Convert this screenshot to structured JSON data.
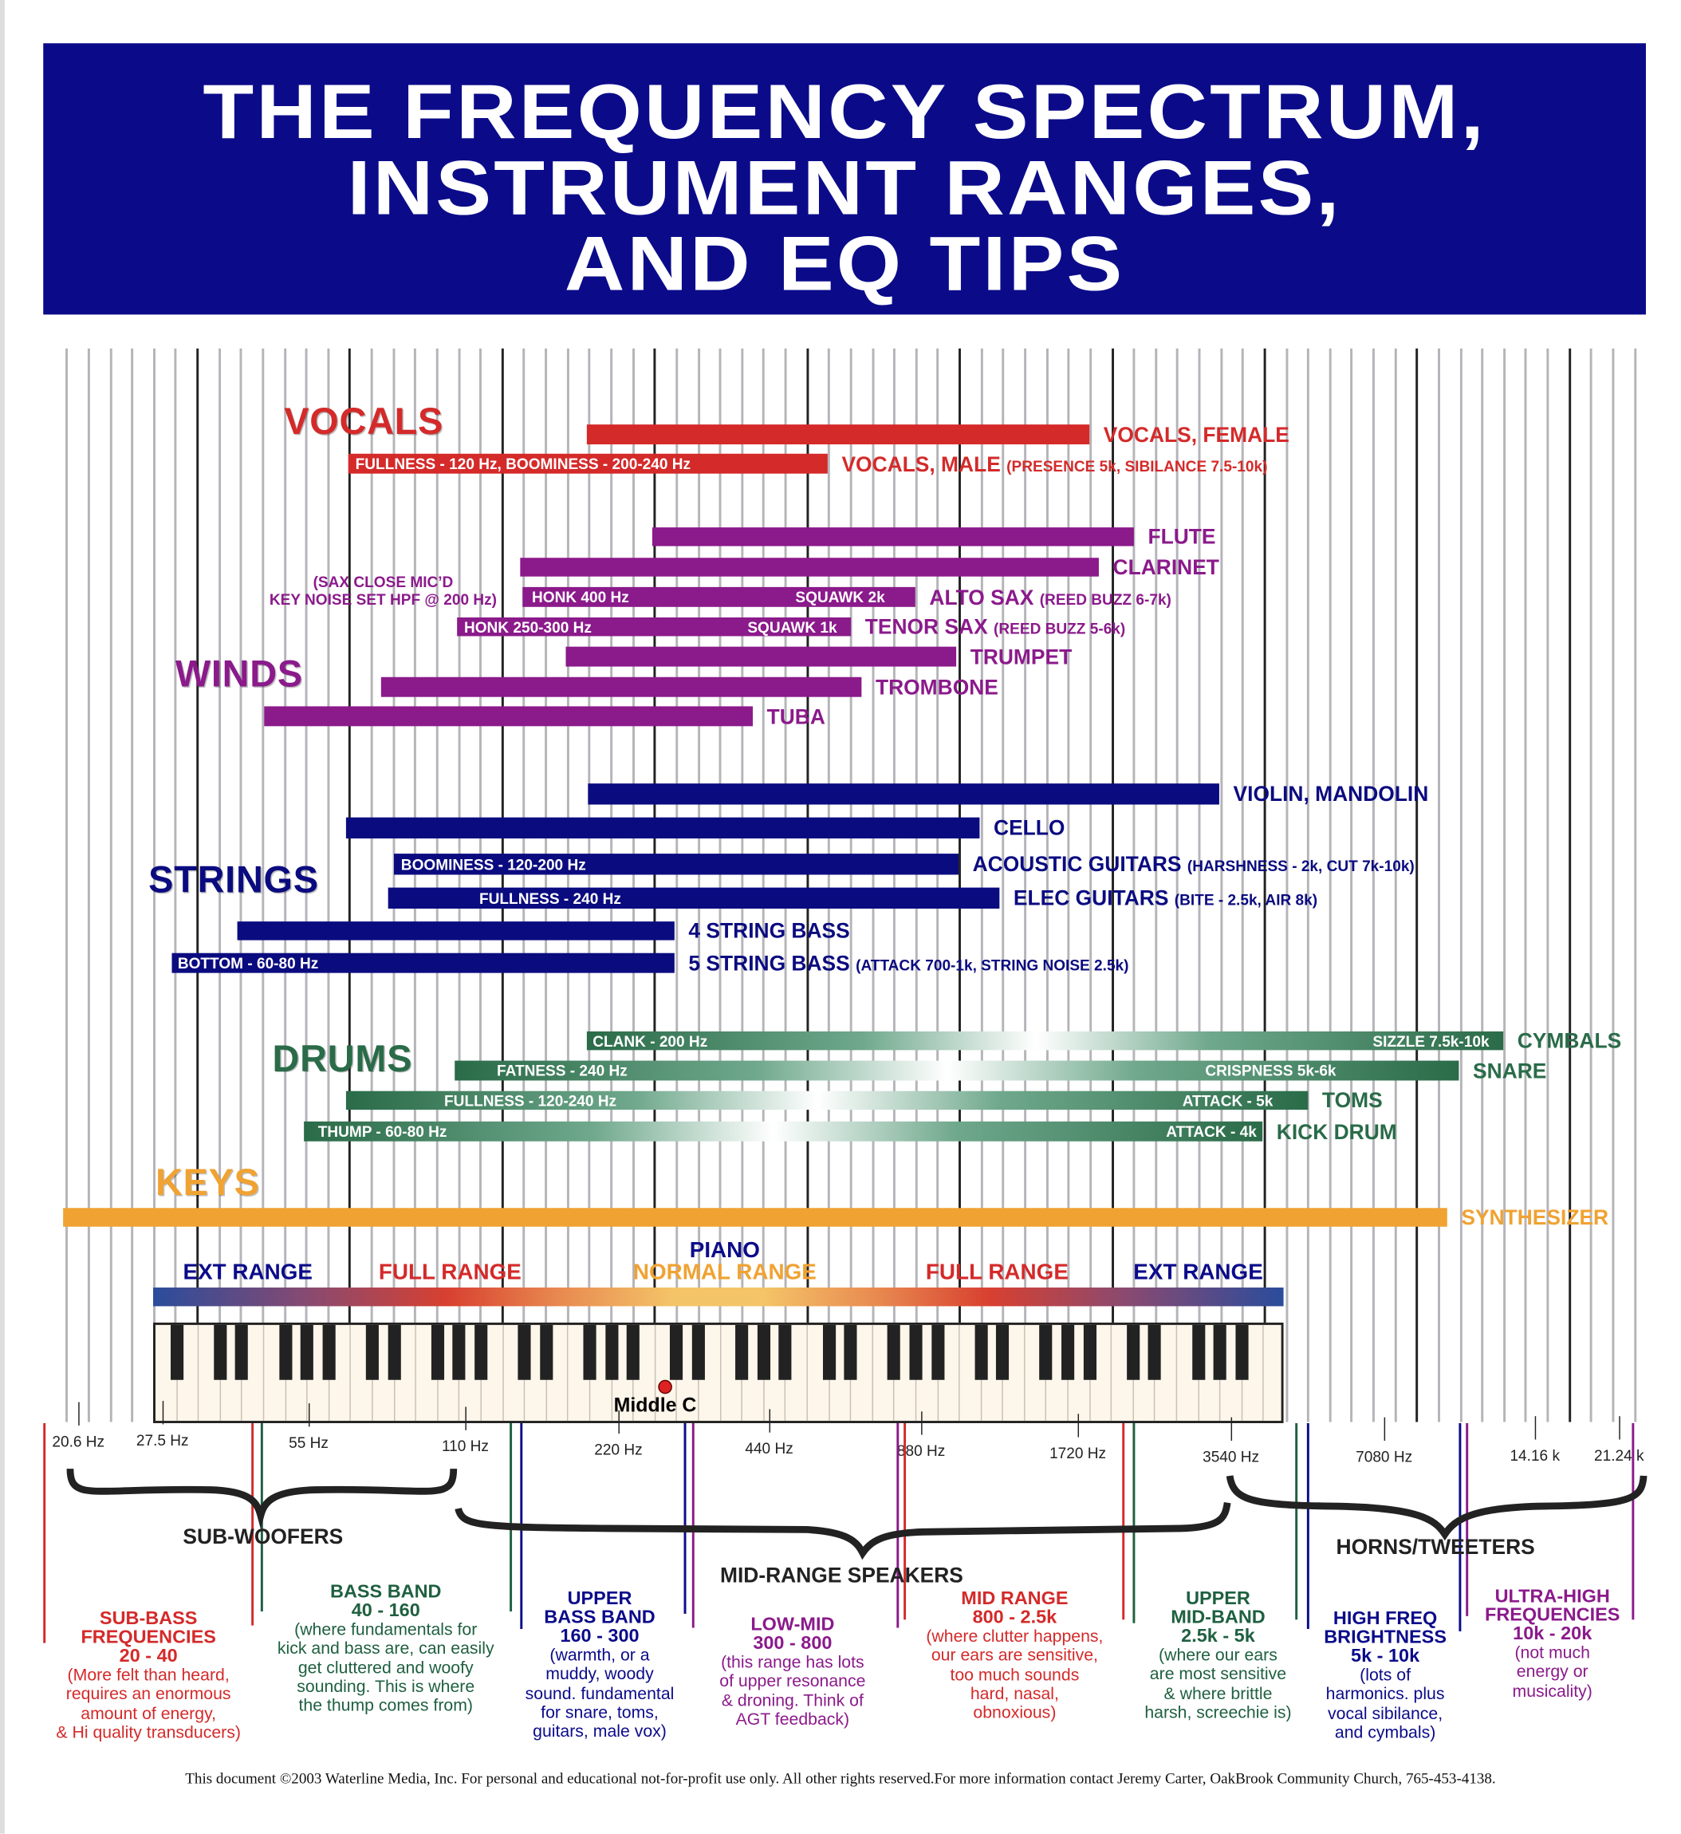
{
  "title": {
    "lines": [
      "THE FREQUENCY SPECTRUM,",
      "INSTRUMENT RANGES,",
      "AND EQ TIPS"
    ],
    "background": "#0b0b8a"
  },
  "colors": {
    "vocals": "#d42a2a",
    "winds": "#8b1a8b",
    "strings": "#0b0b80",
    "drums": "#2a6b48",
    "keys": "#f0a232"
  },
  "sections": {
    "vocals": "VOCALS",
    "winds": "WINDS",
    "strings": "STRINGS",
    "drums": "DRUMS",
    "keys": "KEYS"
  },
  "sax_note": [
    "(SAX CLOSE MIC’D",
    "KEY NOISE SET HPF @ 200 Hz)"
  ],
  "bars": [
    {
      "group": "vocals",
      "label": "VOCALS, FEMALE",
      "sub": "",
      "inner_left": "",
      "inner_right": ""
    },
    {
      "group": "vocals",
      "label": "VOCALS, MALE",
      "sub": "(PRESENCE 5k, SIBILANCE 7.5-10k)",
      "inner_left": "FULLNESS - 120 Hz, BOOMINESS - 200-240 Hz",
      "inner_right": ""
    },
    {
      "group": "winds",
      "label": "FLUTE",
      "sub": "",
      "inner_left": "",
      "inner_right": ""
    },
    {
      "group": "winds",
      "label": "CLARINET",
      "sub": "",
      "inner_left": "",
      "inner_right": ""
    },
    {
      "group": "winds",
      "label": "ALTO SAX",
      "sub": "(REED BUZZ 6-7k)",
      "inner_left": "HONK 400 Hz",
      "inner_right": "SQUAWK  2k"
    },
    {
      "group": "winds",
      "label": "TENOR SAX",
      "sub": "(REED BUZZ 5-6k)",
      "inner_left": "HONK 250-300 Hz",
      "inner_right": "SQUAWK  1k"
    },
    {
      "group": "winds",
      "label": "TRUMPET",
      "sub": "",
      "inner_left": "",
      "inner_right": ""
    },
    {
      "group": "winds",
      "label": "TROMBONE",
      "sub": "",
      "inner_left": "",
      "inner_right": ""
    },
    {
      "group": "winds",
      "label": "TUBA",
      "sub": "",
      "inner_left": "",
      "inner_right": ""
    },
    {
      "group": "strings",
      "label": "VIOLIN, MANDOLIN",
      "sub": "",
      "inner_left": "",
      "inner_right": ""
    },
    {
      "group": "strings",
      "label": "CELLO",
      "sub": "",
      "inner_left": "",
      "inner_right": ""
    },
    {
      "group": "strings",
      "label": "ACOUSTIC GUITARS",
      "sub": "(HARSHNESS - 2k, CUT 7k-10k)",
      "inner_left": "BOOMINESS - 120-200 Hz",
      "inner_right": ""
    },
    {
      "group": "strings",
      "label": "ELEC GUITARS",
      "sub": "(BITE - 2.5k, AIR 8k)",
      "inner_left": "FULLNESS - 240 Hz",
      "inner_right": ""
    },
    {
      "group": "strings",
      "label": "4 STRING BASS",
      "sub": "",
      "inner_left": "",
      "inner_right": ""
    },
    {
      "group": "strings",
      "label": "5 STRING BASS",
      "sub": "(ATTACK 700-1k, STRING NOISE 2.5k)",
      "inner_left": "BOTTOM - 60-80 Hz",
      "inner_right": ""
    },
    {
      "group": "drums",
      "label": "CYMBALS",
      "sub": "",
      "inner_left": "CLANK - 200 Hz",
      "inner_right": "SIZZLE 7.5k-10k"
    },
    {
      "group": "drums",
      "label": "SNARE",
      "sub": "",
      "inner_left": "FATNESS - 240 Hz",
      "inner_right": "CRISPNESS 5k-6k"
    },
    {
      "group": "drums",
      "label": "TOMS",
      "sub": "",
      "inner_left": "FULLNESS - 120-240 Hz",
      "inner_right": "ATTACK - 5k"
    },
    {
      "group": "drums",
      "label": "KICK DRUM",
      "sub": "",
      "inner_left": "THUMP - 60-80 Hz",
      "inner_right": "ATTACK - 4k"
    },
    {
      "group": "keys",
      "label": "SYNTHESIZER",
      "sub": "",
      "inner_left": "",
      "inner_right": ""
    }
  ],
  "piano": {
    "title": "PIANO",
    "normal": "NORMAL RANGE",
    "ext_left": "EXT RANGE",
    "full_left": "FULL RANGE",
    "full_right": "FULL RANGE",
    "ext_right": "EXT RANGE",
    "middle_c": "Middle C"
  },
  "freq_ticks": [
    "20.6 Hz",
    "27.5 Hz",
    "55 Hz",
    "110 Hz",
    "220 Hz",
    "440 Hz",
    "880 Hz",
    "1720 Hz",
    "3540 Hz",
    "7080 Hz",
    "14.16 k",
    "21.24 k"
  ],
  "speakers": {
    "sub": "SUB-WOOFERS",
    "mid": "MID-RANGE SPEAKERS",
    "high": "HORNS/TWEETERS"
  },
  "bands": [
    {
      "title": "SUB-BASS\nFREQUENCIES\n20 - 40",
      "desc": "(More felt than heard,\nrequires an enormous\namount of energy,\n& Hi quality transducers)",
      "color": "#d42a2a"
    },
    {
      "title": "BASS BAND\n40 - 160",
      "desc": "(where fundamentals for\nkick and bass are, can easily\nget cluttered and woofy\nsounding. This is where\nthe thump comes from)",
      "color": "#1f6040"
    },
    {
      "title": "UPPER\nBASS BAND\n160 - 300",
      "desc": "(warmth, or a\nmuddy, woody\nsound. fundamental\nfor snare, toms,\nguitars, male vox)",
      "color": "#0b0b8a"
    },
    {
      "title": "LOW-MID\n300 - 800",
      "desc": "(this range has lots\nof upper resonance\n& droning. Think of\nAGT feedback)",
      "color": "#8b1a8b"
    },
    {
      "title": "MID RANGE\n800 - 2.5k",
      "desc": "(where clutter happens,\nour ears are sensitive,\ntoo much sounds\nhard, nasal,\nobnoxious)",
      "color": "#d42a2a"
    },
    {
      "title": "UPPER\nMID-BAND\n2.5k - 5k",
      "desc": "(where our ears\nare most sensitive\n& where brittle\nharsh, screechie is)",
      "color": "#1f6040"
    },
    {
      "title": "HIGH FREQ\nBRIGHTNESS\n5k - 10k",
      "desc": "(lots of\nharmonics. plus\nvocal sibilance,\nand cymbals)",
      "color": "#0b0b8a"
    },
    {
      "title": "ULTRA-HIGH\nFREQUENCIES\n10k - 20k",
      "desc": "(not much\nenergy or\nmusicality)",
      "color": "#8b1a8b"
    }
  ],
  "footer": "This document ©2003 Waterline Media, Inc. For personal and educational not-for-profit use only. All other rights reserved.For more information contact Jeremy Carter, OakBrook Community Church, 765-453-4138."
}
